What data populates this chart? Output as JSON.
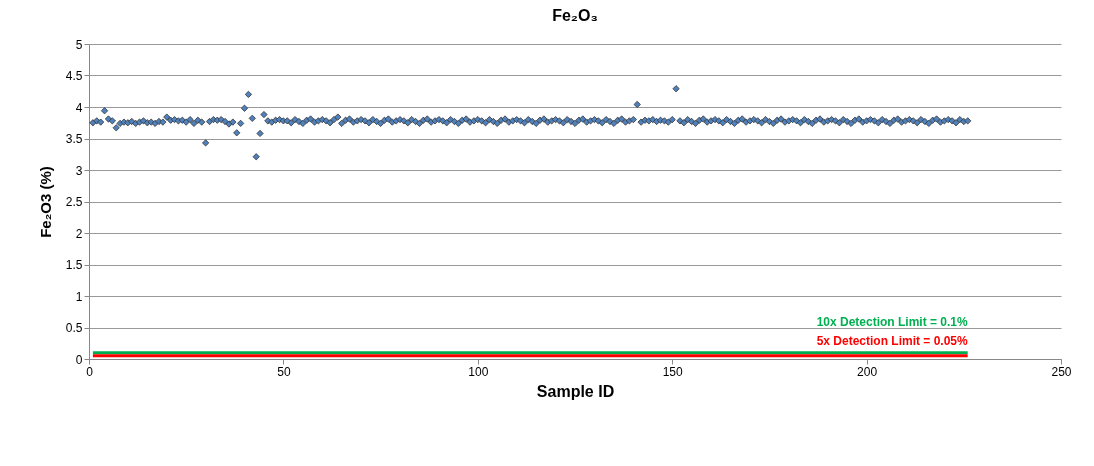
{
  "chart_data": {
    "type": "scatter",
    "title": "Fe₂O₃",
    "xlabel": "Sample ID",
    "ylabel": "Fe₂O3 (%)",
    "xlim": [
      0,
      250
    ],
    "xticks": [
      0,
      50,
      100,
      150,
      200,
      250
    ],
    "ylim": [
      0,
      5
    ],
    "yticks": [
      0,
      0.5,
      1,
      1.5,
      2,
      2.5,
      3,
      3.5,
      4,
      4.5,
      5
    ],
    "grid": "y",
    "series": [
      {
        "color": "#4f81bd",
        "marker": "diamond",
        "x": [
          1,
          2,
          3,
          4,
          5,
          6,
          7,
          8,
          9,
          10,
          11,
          12,
          13,
          14,
          15,
          16,
          17,
          18,
          19,
          20,
          21,
          22,
          23,
          24,
          25,
          26,
          27,
          28,
          29,
          30,
          31,
          32,
          33,
          34,
          35,
          36,
          37,
          38,
          39,
          40,
          41,
          42,
          43,
          44,
          45,
          46,
          47,
          48,
          49,
          50,
          51,
          52,
          53,
          54,
          55,
          56,
          57,
          58,
          59,
          60,
          61,
          62,
          63,
          64,
          65,
          66,
          67,
          68,
          69,
          70,
          71,
          72,
          73,
          74,
          75,
          76,
          77,
          78,
          79,
          80,
          81,
          82,
          83,
          84,
          85,
          86,
          87,
          88,
          89,
          90,
          91,
          92,
          93,
          94,
          95,
          96,
          97,
          98,
          99,
          100,
          101,
          102,
          103,
          104,
          105,
          106,
          107,
          108,
          109,
          110,
          111,
          112,
          113,
          114,
          115,
          116,
          117,
          118,
          119,
          120,
          121,
          122,
          123,
          124,
          125,
          126,
          127,
          128,
          129,
          130,
          131,
          132,
          133,
          134,
          135,
          136,
          137,
          138,
          139,
          140,
          141,
          142,
          143,
          144,
          145,
          146,
          147,
          148,
          149,
          150,
          151,
          152,
          153,
          154,
          155,
          156,
          157,
          158,
          159,
          160,
          161,
          162,
          163,
          164,
          165,
          166,
          167,
          168,
          169,
          170,
          171,
          172,
          173,
          174,
          175,
          176,
          177,
          178,
          179,
          180,
          181,
          182,
          183,
          184,
          185,
          186,
          187,
          188,
          189,
          190,
          191,
          192,
          193,
          194,
          195,
          196,
          197,
          198,
          199,
          200,
          201,
          202,
          203,
          204,
          205,
          206,
          207,
          208,
          209,
          210,
          211,
          212,
          213,
          214,
          215,
          216,
          217,
          218,
          219,
          220,
          221,
          222,
          223,
          224,
          225,
          226
        ],
        "values": [
          3.75,
          3.78,
          3.76,
          3.94,
          3.81,
          3.78,
          3.67,
          3.74,
          3.76,
          3.75,
          3.77,
          3.74,
          3.76,
          3.78,
          3.75,
          3.76,
          3.74,
          3.77,
          3.76,
          3.84,
          3.79,
          3.8,
          3.78,
          3.79,
          3.76,
          3.8,
          3.74,
          3.79,
          3.76,
          3.43,
          3.77,
          3.8,
          3.79,
          3.8,
          3.77,
          3.73,
          3.76,
          3.59,
          3.74,
          3.98,
          4.2,
          3.82,
          3.21,
          3.58,
          3.88,
          3.78,
          3.76,
          3.79,
          3.8,
          3.78,
          3.78,
          3.75,
          3.8,
          3.77,
          3.74,
          3.79,
          3.81,
          3.76,
          3.78,
          3.8,
          3.78,
          3.75,
          3.8,
          3.84,
          3.74,
          3.79,
          3.81,
          3.76,
          3.78,
          3.8,
          3.78,
          3.75,
          3.8,
          3.77,
          3.74,
          3.79,
          3.81,
          3.76,
          3.78,
          3.8,
          3.78,
          3.75,
          3.8,
          3.77,
          3.74,
          3.79,
          3.81,
          3.76,
          3.78,
          3.8,
          3.78,
          3.75,
          3.8,
          3.77,
          3.74,
          3.79,
          3.81,
          3.76,
          3.78,
          3.8,
          3.78,
          3.75,
          3.8,
          3.77,
          3.74,
          3.79,
          3.81,
          3.76,
          3.78,
          3.8,
          3.78,
          3.75,
          3.8,
          3.77,
          3.74,
          3.79,
          3.81,
          3.76,
          3.78,
          3.8,
          3.78,
          3.75,
          3.8,
          3.77,
          3.74,
          3.79,
          3.81,
          3.76,
          3.78,
          3.8,
          3.78,
          3.75,
          3.8,
          3.77,
          3.74,
          3.79,
          3.81,
          3.76,
          3.78,
          3.8,
          4.04,
          3.76,
          3.79,
          3.78,
          3.8,
          3.77,
          3.79,
          3.78,
          3.76,
          3.8,
          4.29,
          3.78,
          3.75,
          3.8,
          3.77,
          3.74,
          3.79,
          3.81,
          3.76,
          3.78,
          3.8,
          3.78,
          3.75,
          3.8,
          3.77,
          3.74,
          3.79,
          3.81,
          3.76,
          3.78,
          3.8,
          3.78,
          3.75,
          3.8,
          3.77,
          3.74,
          3.79,
          3.81,
          3.76,
          3.78,
          3.8,
          3.78,
          3.75,
          3.8,
          3.77,
          3.74,
          3.79,
          3.81,
          3.76,
          3.78,
          3.8,
          3.78,
          3.75,
          3.8,
          3.77,
          3.74,
          3.79,
          3.81,
          3.76,
          3.78,
          3.8,
          3.78,
          3.75,
          3.8,
          3.77,
          3.74,
          3.79,
          3.81,
          3.76,
          3.78,
          3.8,
          3.78,
          3.75,
          3.8,
          3.77,
          3.74,
          3.79,
          3.81,
          3.76,
          3.78,
          3.8,
          3.78,
          3.75,
          3.8,
          3.77,
          3.78
        ]
      },
      {
        "type": "line",
        "name": "10x Detection Limit = 0.1%",
        "color": "#00b050",
        "x": [
          1,
          226
        ],
        "values": [
          0.1,
          0.1
        ]
      },
      {
        "type": "line",
        "name": "5x Detection Limit = 0.05%",
        "color": "#ff0000",
        "x": [
          1,
          226
        ],
        "values": [
          0.05,
          0.05
        ]
      }
    ]
  }
}
